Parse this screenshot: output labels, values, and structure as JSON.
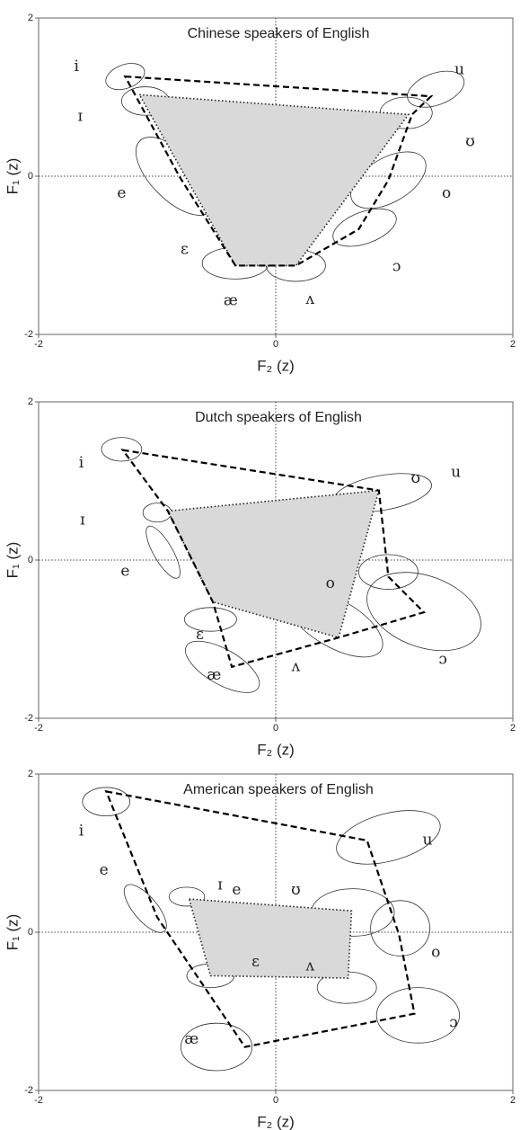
{
  "chart_data": [
    {
      "type": "vowel-plot",
      "title": "Chinese speakers of English",
      "x_label": "F₂ (z)",
      "y_label": "F₁ (z)",
      "xlim": [
        -2,
        2
      ],
      "ylim": [
        -2,
        2
      ],
      "xticks": [
        -2,
        0,
        2
      ],
      "yticks": [
        -2,
        0,
        2
      ],
      "shaded_polygon": {
        "color": "#d9d9d9",
        "x": [
          -1.15,
          1.12,
          0.17,
          -0.34
        ],
        "y": [
          1.03,
          0.78,
          -1.13,
          -1.13
        ]
      },
      "dashed_polygon": {
        "color": "#000000",
        "x": [
          -1.27,
          1.31,
          1.15,
          0.95,
          0.7,
          0.17,
          -0.34,
          -0.81
        ],
        "y": [
          1.26,
          1.01,
          0.78,
          -0.05,
          -0.67,
          -1.13,
          -1.13,
          -0.01
        ]
      },
      "ellipses": [
        {
          "x": -1.27,
          "y": 1.26,
          "rx": 0.17,
          "ry": 0.15,
          "angle": -20
        },
        {
          "x": -1.1,
          "y": 0.95,
          "rx": 0.2,
          "ry": 0.18,
          "angle": 0
        },
        {
          "x": -0.85,
          "y": 0.0,
          "rx": 0.42,
          "ry": 0.3,
          "angle": 45
        },
        {
          "x": -0.34,
          "y": -1.1,
          "rx": 0.28,
          "ry": 0.2,
          "angle": 0
        },
        {
          "x": 0.17,
          "y": -1.13,
          "rx": 0.25,
          "ry": 0.2,
          "angle": 0
        },
        {
          "x": 0.75,
          "y": -0.65,
          "rx": 0.28,
          "ry": 0.2,
          "angle": -20
        },
        {
          "x": 0.95,
          "y": -0.05,
          "rx": 0.35,
          "ry": 0.28,
          "angle": -30
        },
        {
          "x": 1.1,
          "y": 0.8,
          "rx": 0.22,
          "ry": 0.2,
          "angle": 0
        },
        {
          "x": 1.35,
          "y": 1.1,
          "rx": 0.25,
          "ry": 0.2,
          "angle": -20
        }
      ],
      "annotations": [
        {
          "text": "i",
          "x": -1.68,
          "y": 1.38
        },
        {
          "text": "ɪ",
          "x": -1.65,
          "y": 0.75
        },
        {
          "text": "u",
          "x": 1.55,
          "y": 1.34
        },
        {
          "text": "ʊ",
          "x": 1.64,
          "y": 0.43
        },
        {
          "text": "e",
          "x": -1.3,
          "y": -0.22
        },
        {
          "text": "o",
          "x": 1.44,
          "y": -0.22
        },
        {
          "text": "ɛ",
          "x": -0.77,
          "y": -0.93
        },
        {
          "text": "ɔ",
          "x": 1.02,
          "y": -1.15
        },
        {
          "text": "æ",
          "x": -0.38,
          "y": -1.58
        },
        {
          "text": "ʌ",
          "x": 0.29,
          "y": -1.56
        }
      ]
    },
    {
      "type": "vowel-plot",
      "title": "Dutch speakers of English",
      "x_label": "F₂ (z)",
      "y_label": "F₁ (z)",
      "xlim": [
        -2,
        2
      ],
      "ylim": [
        -2,
        2
      ],
      "xticks": [
        -2,
        0,
        2
      ],
      "yticks": [
        -2,
        0,
        2
      ],
      "shaded_polygon": {
        "color": "#d9d9d9",
        "x": [
          -0.91,
          0.87,
          0.53,
          -0.53
        ],
        "y": [
          0.62,
          0.88,
          -0.98,
          -0.53
        ]
      },
      "dashed_polygon": {
        "color": "#000000",
        "x": [
          -1.29,
          0.87,
          0.95,
          1.25,
          0.53,
          -0.37,
          -0.53,
          -0.91
        ],
        "y": [
          1.39,
          0.88,
          -0.21,
          -0.66,
          -0.98,
          -1.35,
          -0.53,
          0.62
        ]
      },
      "ellipses": [
        {
          "x": -1.3,
          "y": 1.4,
          "rx": 0.17,
          "ry": 0.15,
          "angle": 0
        },
        {
          "x": -1.0,
          "y": 0.6,
          "rx": 0.12,
          "ry": 0.12,
          "angle": 0
        },
        {
          "x": -0.95,
          "y": 0.1,
          "rx": 0.25,
          "ry": 0.12,
          "angle": 60
        },
        {
          "x": -0.55,
          "y": -0.75,
          "rx": 0.22,
          "ry": 0.15,
          "angle": 0
        },
        {
          "x": -0.45,
          "y": -1.35,
          "rx": 0.35,
          "ry": 0.22,
          "angle": 30
        },
        {
          "x": 0.5,
          "y": -0.8,
          "rx": 0.45,
          "ry": 0.3,
          "angle": 30
        },
        {
          "x": 0.95,
          "y": -0.15,
          "rx": 0.25,
          "ry": 0.22,
          "angle": 0
        },
        {
          "x": 1.25,
          "y": -0.65,
          "rx": 0.5,
          "ry": 0.45,
          "angle": 20
        },
        {
          "x": 0.9,
          "y": 0.85,
          "rx": 0.42,
          "ry": 0.22,
          "angle": -10
        }
      ],
      "annotations": [
        {
          "text": "i",
          "x": -1.64,
          "y": 1.22
        },
        {
          "text": "ɪ",
          "x": -1.63,
          "y": 0.5
        },
        {
          "text": "e",
          "x": -1.27,
          "y": -0.15
        },
        {
          "text": "ɛ",
          "x": -0.64,
          "y": -0.95
        },
        {
          "text": "æ",
          "x": -0.52,
          "y": -1.46
        },
        {
          "text": "ʌ",
          "x": 0.17,
          "y": -1.35
        },
        {
          "text": "o",
          "x": 0.46,
          "y": -0.3
        },
        {
          "text": "ɔ",
          "x": 1.41,
          "y": -1.26
        },
        {
          "text": "ʊ",
          "x": 1.18,
          "y": 1.03
        },
        {
          "text": "u",
          "x": 1.52,
          "y": 1.1
        }
      ]
    },
    {
      "type": "vowel-plot",
      "title": "American  speakers of English",
      "x_label": "F₂ (z)",
      "y_label": "F₁ (z)",
      "xlim": [
        -2,
        2
      ],
      "ylim": [
        -2,
        2
      ],
      "xticks": [
        -2,
        0,
        2
      ],
      "yticks": [
        -2,
        0,
        2
      ],
      "shaded_polygon": {
        "color": "#d9d9d9",
        "x": [
          -0.73,
          0.64,
          0.61,
          -0.55
        ],
        "y": [
          0.42,
          0.27,
          -0.58,
          -0.55
        ]
      },
      "dashed_polygon": {
        "color": "#000000",
        "x": [
          -1.43,
          0.77,
          1.04,
          1.17,
          -0.26,
          -1.0
        ],
        "y": [
          1.78,
          1.16,
          -0.03,
          -1.03,
          -1.45,
          0.19
        ]
      },
      "ellipses": [
        {
          "x": -1.43,
          "y": 1.65,
          "rx": 0.2,
          "ry": 0.18,
          "angle": 0
        },
        {
          "x": -1.1,
          "y": 0.3,
          "rx": 0.25,
          "ry": 0.15,
          "angle": 50
        },
        {
          "x": -0.75,
          "y": 0.45,
          "rx": 0.15,
          "ry": 0.12,
          "angle": 0
        },
        {
          "x": -0.55,
          "y": -0.55,
          "rx": 0.2,
          "ry": 0.15,
          "angle": 0
        },
        {
          "x": -0.5,
          "y": -1.45,
          "rx": 0.3,
          "ry": 0.3,
          "angle": 0
        },
        {
          "x": 0.6,
          "y": -0.7,
          "rx": 0.25,
          "ry": 0.2,
          "angle": 0
        },
        {
          "x": 0.65,
          "y": 0.25,
          "rx": 0.35,
          "ry": 0.3,
          "angle": 0
        },
        {
          "x": 0.95,
          "y": 1.2,
          "rx": 0.45,
          "ry": 0.3,
          "angle": -15
        },
        {
          "x": 1.05,
          "y": 0.05,
          "rx": 0.25,
          "ry": 0.35,
          "angle": 0
        },
        {
          "x": 1.2,
          "y": -1.05,
          "rx": 0.35,
          "ry": 0.35,
          "angle": 0
        }
      ],
      "annotations": [
        {
          "text": "i",
          "x": -1.64,
          "y": 1.27
        },
        {
          "text": "e",
          "x": -1.45,
          "y": 0.78
        },
        {
          "text": "ɪ",
          "x": -0.47,
          "y": 0.59
        },
        {
          "text": "e",
          "x": -0.33,
          "y": 0.53
        },
        {
          "text": "ʊ",
          "x": 0.17,
          "y": 0.53
        },
        {
          "text": "ɛ",
          "x": -0.17,
          "y": -0.38
        },
        {
          "text": "ʌ",
          "x": 0.29,
          "y": -0.43
        },
        {
          "text": "u",
          "x": 1.28,
          "y": 1.16
        },
        {
          "text": "o",
          "x": 1.35,
          "y": -0.26
        },
        {
          "text": "ɔ",
          "x": 1.5,
          "y": -1.15
        },
        {
          "text": "æ",
          "x": -0.71,
          "y": -1.36
        }
      ]
    }
  ]
}
